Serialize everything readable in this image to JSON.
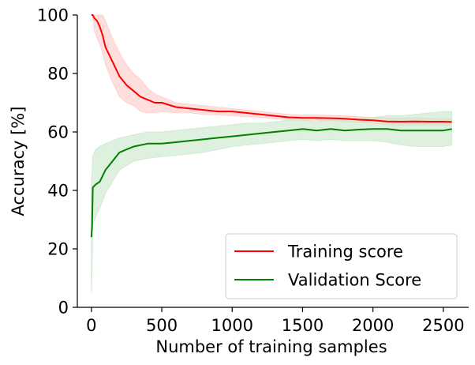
{
  "chart_data": {
    "type": "line",
    "xlabel": "Number of training samples",
    "ylabel": "Accuracy [%]",
    "xlim": [
      -100,
      2680
    ],
    "ylim": [
      0,
      100
    ],
    "xticks": [
      0,
      500,
      1000,
      1500,
      2000,
      2500
    ],
    "yticks": [
      0,
      20,
      40,
      60,
      80,
      100
    ],
    "grid": false,
    "legend_position": "bottom-right",
    "series": [
      {
        "name": "Training score",
        "color": "#ff0000",
        "band_color": "#ffcccc",
        "x": [
          0,
          10,
          20,
          40,
          60,
          80,
          100,
          150,
          200,
          250,
          300,
          350,
          400,
          450,
          500,
          600,
          700,
          800,
          900,
          1000,
          1100,
          1200,
          1300,
          1400,
          1500,
          1600,
          1700,
          1800,
          1900,
          2000,
          2100,
          2200,
          2300,
          2400,
          2500,
          2560
        ],
        "y": [
          100,
          100,
          99,
          98,
          96,
          93,
          89,
          84,
          79,
          76,
          74,
          72,
          71,
          70,
          70,
          68.5,
          68,
          67.5,
          67,
          67,
          66.5,
          66,
          65.5,
          65,
          64.8,
          64.8,
          64.7,
          64.5,
          64.2,
          64,
          63.6,
          63.5,
          63.6,
          63.5,
          63.5,
          63.4
        ],
        "upper": [
          100,
          100,
          100,
          100,
          100,
          100,
          98,
          92,
          87,
          83,
          80,
          78,
          75,
          73,
          72,
          70,
          69.5,
          69,
          68.5,
          68,
          67.5,
          67,
          66.5,
          66,
          65.8,
          65.8,
          65.7,
          65.5,
          65.2,
          65,
          64.8,
          64.8,
          64.8,
          64.7,
          64.6,
          64.5
        ],
        "lower": [
          100,
          100,
          95,
          92,
          90,
          87,
          83,
          77,
          72,
          70,
          69,
          67,
          66.5,
          66.5,
          67,
          66.5,
          66.5,
          66,
          65.8,
          65.5,
          65.2,
          65,
          64.5,
          64.2,
          64,
          64,
          63.9,
          63.5,
          63.2,
          63,
          62.5,
          62.3,
          62.5,
          62.4,
          62.4,
          62.3
        ]
      },
      {
        "name": "Validation Score",
        "color": "#008000",
        "band_color": "#cce8cc",
        "x": [
          0,
          5,
          10,
          30,
          60,
          100,
          150,
          200,
          250,
          300,
          400,
          500,
          600,
          700,
          800,
          900,
          1000,
          1100,
          1200,
          1300,
          1400,
          1500,
          1600,
          1700,
          1800,
          1900,
          2000,
          2100,
          2200,
          2300,
          2400,
          2500,
          2560
        ],
        "y": [
          24,
          28,
          41,
          42,
          43,
          47,
          50,
          53,
          54,
          55,
          56,
          56,
          56.5,
          57,
          57.5,
          58,
          58.5,
          59,
          59.5,
          60,
          60.5,
          61,
          60.5,
          61,
          60.5,
          60.8,
          61,
          61,
          60.5,
          60.5,
          60.5,
          60.5,
          61
        ],
        "upper": [
          44,
          46,
          52,
          54,
          55,
          56,
          57,
          58,
          58.5,
          59,
          60,
          60,
          60.5,
          61,
          61.5,
          62,
          62.5,
          63,
          63,
          63.5,
          64,
          64,
          63.5,
          64,
          64,
          64.5,
          65,
          65.5,
          65.5,
          66,
          66.5,
          67,
          67
        ],
        "lower": [
          5,
          12,
          28,
          31,
          34,
          39,
          43,
          47,
          48.5,
          50,
          51,
          51.5,
          52,
          52.5,
          53,
          54,
          55,
          55.5,
          56,
          56.5,
          57,
          57.5,
          57,
          57.5,
          57,
          57,
          57,
          56.5,
          55.5,
          55,
          55,
          55,
          55.5
        ]
      }
    ]
  }
}
